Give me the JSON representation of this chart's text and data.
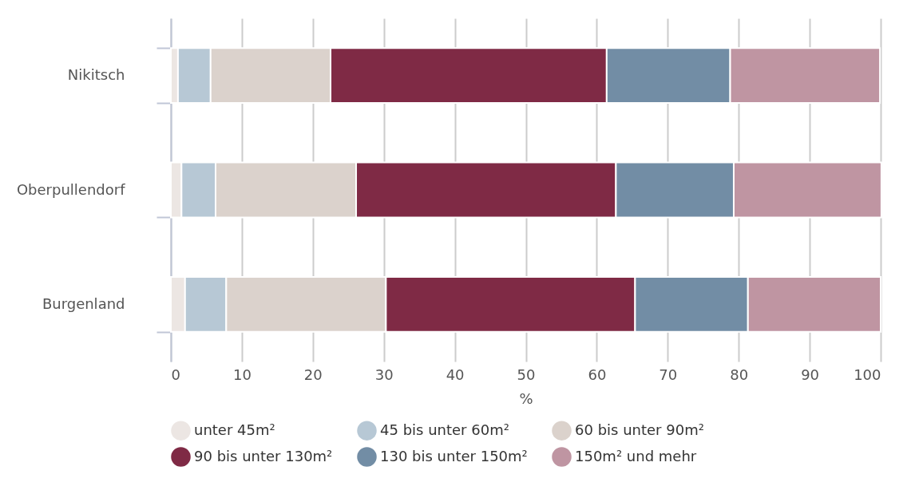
{
  "chart_data": {
    "type": "bar",
    "orientation": "horizontal",
    "stacked": true,
    "xlabel": "%",
    "categories": [
      "Nikitsch",
      "Oberpullendorf",
      "Burgenland"
    ],
    "series": [
      {
        "name": "unter 45m²",
        "color": "#ece6e3",
        "values": [
          1.0,
          1.5,
          2.0
        ]
      },
      {
        "name": "45 bis unter 60m²",
        "color": "#b7c8d5",
        "values": [
          4.6,
          4.8,
          5.8
        ]
      },
      {
        "name": "60 bis unter 90m²",
        "color": "#dbd2cc",
        "values": [
          16.9,
          19.8,
          22.5
        ]
      },
      {
        "name": "90 bis unter 130m²",
        "color": "#7f2a45",
        "values": [
          38.9,
          36.6,
          35.1
        ]
      },
      {
        "name": "130 bis unter 150m²",
        "color": "#728da5",
        "values": [
          17.4,
          16.6,
          15.9
        ]
      },
      {
        "name": "150m² und mehr",
        "color": "#bf95a2",
        "values": [
          21.1,
          20.8,
          18.7
        ]
      }
    ],
    "xlim": [
      0,
      100
    ],
    "xticks": [
      0,
      10,
      20,
      30,
      40,
      50,
      60,
      70,
      80,
      90,
      100
    ],
    "grid": "x",
    "legend": "bottom"
  }
}
